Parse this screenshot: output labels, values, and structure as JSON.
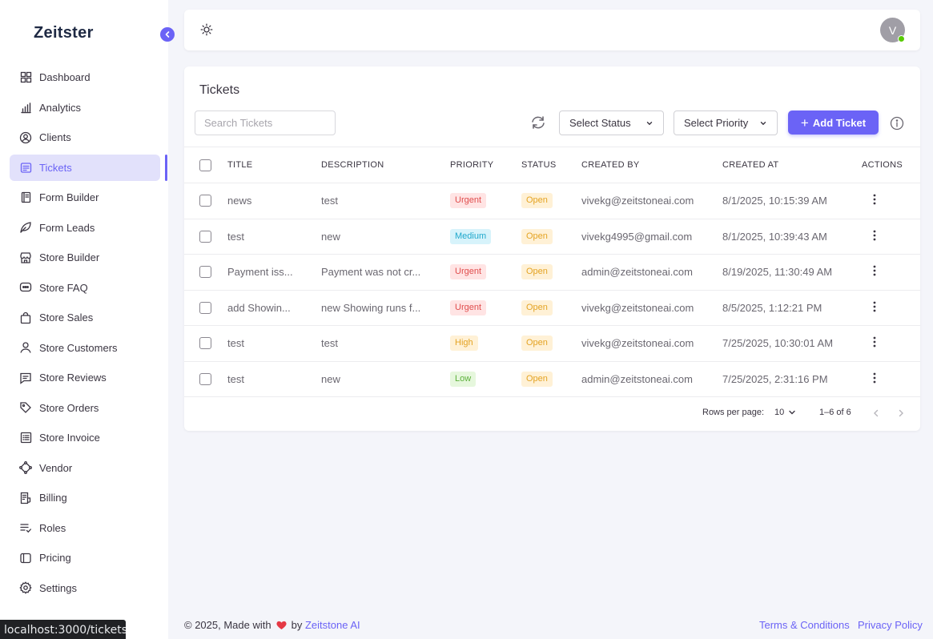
{
  "app": {
    "logo": "Zeitster"
  },
  "colors": {
    "accent": "#6b63f6",
    "active_bg": "#e2e1fb"
  },
  "sidebar": {
    "items": [
      {
        "label": "Dashboard",
        "icon": "grid-icon"
      },
      {
        "label": "Analytics",
        "icon": "bar-chart-icon"
      },
      {
        "label": "Clients",
        "icon": "user-circle-icon"
      },
      {
        "label": "Tickets",
        "icon": "ticket-icon",
        "active": true
      },
      {
        "label": "Form Builder",
        "icon": "document-icon"
      },
      {
        "label": "Form Leads",
        "icon": "leaf-icon"
      },
      {
        "label": "Store Builder",
        "icon": "store-icon"
      },
      {
        "label": "Store FAQ",
        "icon": "chat-icon"
      },
      {
        "label": "Store Sales",
        "icon": "shopping-bag-icon"
      },
      {
        "label": "Store Customers",
        "icon": "user-icon"
      },
      {
        "label": "Store Reviews",
        "icon": "message-icon"
      },
      {
        "label": "Store Orders",
        "icon": "tag-icon"
      },
      {
        "label": "Store Invoice",
        "icon": "list-icon"
      },
      {
        "label": "Vendor",
        "icon": "vendor-icon"
      },
      {
        "label": "Billing",
        "icon": "receipt-icon"
      },
      {
        "label": "Roles",
        "icon": "checklist-icon"
      },
      {
        "label": "Pricing",
        "icon": "pricing-icon"
      },
      {
        "label": "Settings",
        "icon": "gear-icon"
      }
    ]
  },
  "header": {
    "avatar_initial": "V",
    "avatar_status": "online"
  },
  "tickets": {
    "title": "Tickets",
    "search_placeholder": "Search Tickets",
    "status_select": "Select Status",
    "priority_select": "Select Priority",
    "add_button": "Add Ticket",
    "columns": [
      "TITLE",
      "DESCRIPTION",
      "PRIORITY",
      "STATUS",
      "CREATED BY",
      "CREATED AT",
      "ACTIONS"
    ],
    "rows": [
      {
        "title": "news",
        "description": "test",
        "priority": "Urgent",
        "status": "Open",
        "created_by": "vivekg@zeitstoneai.com",
        "created_at": "8/1/2025, 10:15:39 AM"
      },
      {
        "title": "test",
        "description": "new",
        "priority": "Medium",
        "status": "Open",
        "created_by": "vivekg4995@gmail.com",
        "created_at": "8/1/2025, 10:39:43 AM"
      },
      {
        "title": "Payment iss...",
        "description": "Payment was not cr...",
        "priority": "Urgent",
        "status": "Open",
        "created_by": "admin@zeitstoneai.com",
        "created_at": "8/19/2025, 11:30:49 AM"
      },
      {
        "title": "add Showin...",
        "description": "new Showing runs f...",
        "priority": "Urgent",
        "status": "Open",
        "created_by": "vivekg@zeitstoneai.com",
        "created_at": "8/5/2025, 1:12:21 PM"
      },
      {
        "title": "test",
        "description": "test",
        "priority": "High",
        "status": "Open",
        "created_by": "vivekg@zeitstoneai.com",
        "created_at": "7/25/2025, 10:30:01 AM"
      },
      {
        "title": "test",
        "description": "new",
        "priority": "Low",
        "status": "Open",
        "created_by": "admin@zeitstoneai.com",
        "created_at": "7/25/2025, 2:31:16 PM"
      }
    ],
    "priority_colors": {
      "Urgent": {
        "bg": "#ffe4e4",
        "fg": "#e04d4d"
      },
      "Medium": {
        "bg": "#d7f3fb",
        "fg": "#1fa8cc"
      },
      "High": {
        "bg": "#fff1d6",
        "fg": "#e4a323"
      },
      "Low": {
        "bg": "#e6f7dd",
        "fg": "#5cb03b"
      }
    },
    "status_colors": {
      "Open": {
        "bg": "#fff1d6",
        "fg": "#e4a323"
      }
    },
    "pagination": {
      "rows_per_page_label": "Rows per page:",
      "rows_per_page": "10",
      "range": "1–6 of 6"
    }
  },
  "footer": {
    "copyright_prefix": "© 2025, Made with",
    "by": "by",
    "company": "Zeitstone AI",
    "terms": "Terms & Conditions",
    "privacy": "Privacy Policy"
  },
  "browser_status": "localhost:3000/tickets"
}
